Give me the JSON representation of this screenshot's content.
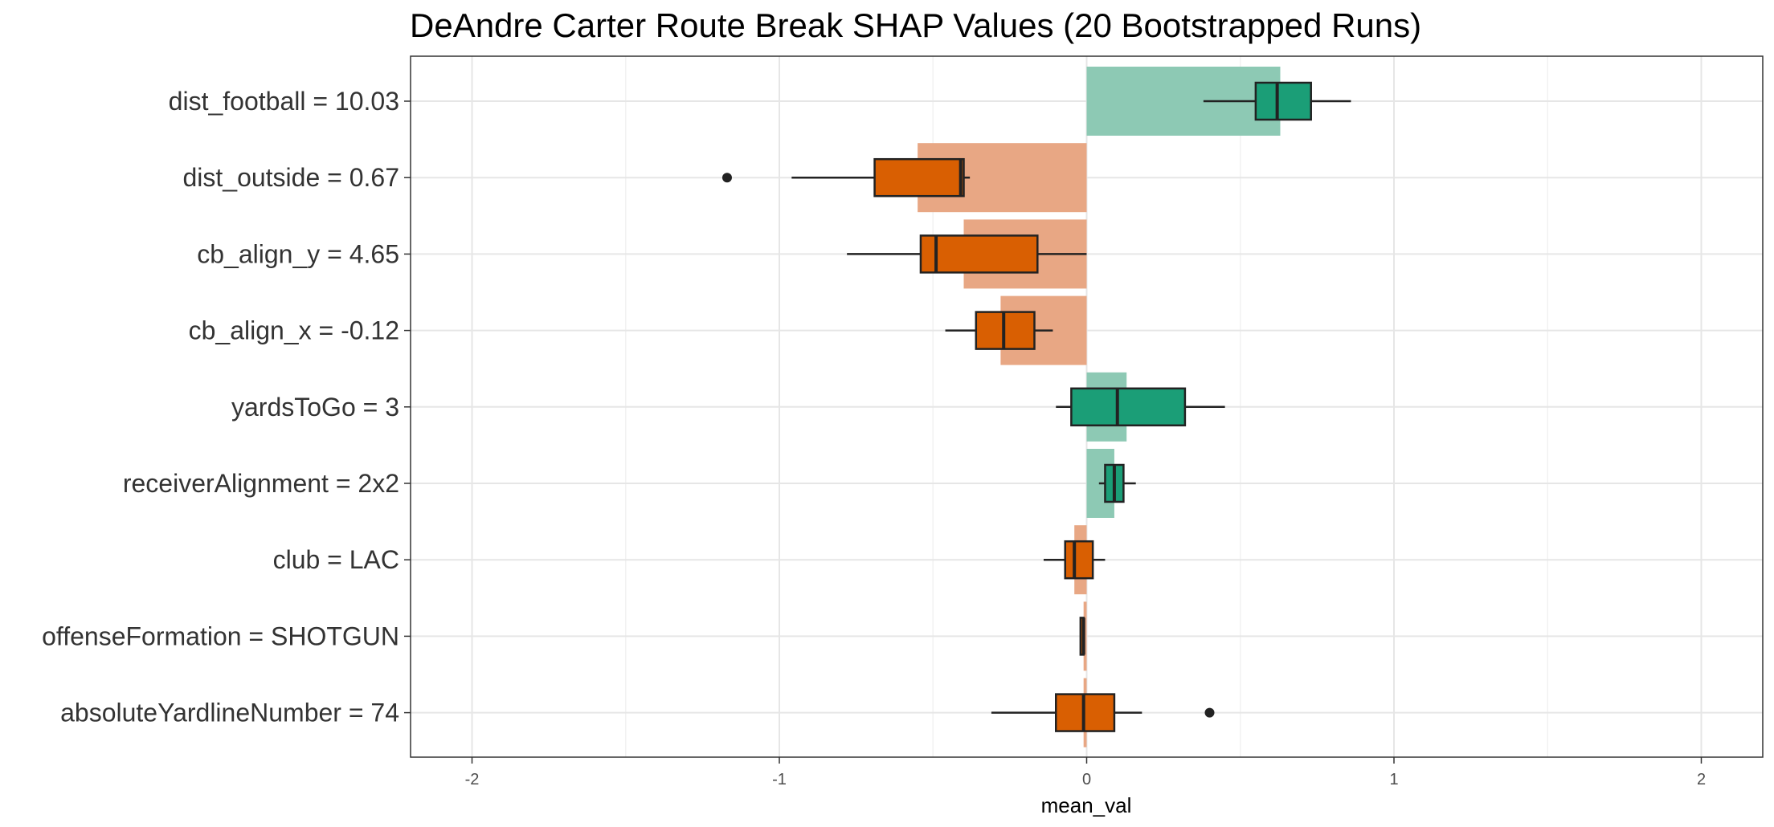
{
  "chart_data": {
    "type": "bar",
    "title": "DeAndre Carter Route Break SHAP Values (20 Bootstrapped Runs)",
    "xlabel": "mean_val",
    "ylabel": "",
    "xlim": [
      -2.2,
      2.2
    ],
    "x_ticks": [
      -2,
      -1,
      0,
      1,
      2
    ],
    "x_tick_labels": [
      "-2",
      "-1",
      "0",
      "1",
      "2"
    ],
    "grid": true,
    "colors": {
      "positive": "#1b9e77",
      "negative": "#d95f02",
      "positive_bar": "#8dc9b4",
      "negative_bar": "#e8a784",
      "box_outline": "#222222"
    },
    "categories": [
      "dist_football = 10.03",
      "dist_outside = 0.67",
      "cb_align_y = 4.65",
      "cb_align_x = -0.12",
      "yardsToGo = 3",
      "receiverAlignment = 2x2",
      "club = LAC",
      "offenseFormation = SHOTGUN",
      "absoluteYardlineNumber = 74"
    ],
    "mean_values": [
      0.63,
      -0.55,
      -0.4,
      -0.28,
      0.13,
      0.09,
      -0.04,
      -0.01,
      -0.01
    ],
    "boxplots": [
      {
        "whisker_low": 0.38,
        "q1": 0.55,
        "median": 0.62,
        "q3": 0.73,
        "whisker_high": 0.86,
        "outliers": []
      },
      {
        "whisker_low": -0.96,
        "q1": -0.69,
        "median": -0.41,
        "q3": -0.4,
        "whisker_high": -0.38,
        "outliers": [
          -1.17
        ]
      },
      {
        "whisker_low": -0.78,
        "q1": -0.54,
        "median": -0.49,
        "q3": -0.16,
        "whisker_high": 0.0,
        "outliers": []
      },
      {
        "whisker_low": -0.46,
        "q1": -0.36,
        "median": -0.27,
        "q3": -0.17,
        "whisker_high": -0.11,
        "outliers": []
      },
      {
        "whisker_low": -0.1,
        "q1": -0.05,
        "median": 0.1,
        "q3": 0.32,
        "whisker_high": 0.45,
        "outliers": []
      },
      {
        "whisker_low": 0.04,
        "q1": 0.06,
        "median": 0.09,
        "q3": 0.12,
        "whisker_high": 0.16,
        "outliers": []
      },
      {
        "whisker_low": -0.14,
        "q1": -0.07,
        "median": -0.04,
        "q3": 0.02,
        "whisker_high": 0.06,
        "outliers": []
      },
      {
        "whisker_low": -0.02,
        "q1": -0.02,
        "median": -0.01,
        "q3": -0.01,
        "whisker_high": -0.01,
        "outliers": []
      },
      {
        "whisker_low": -0.31,
        "q1": -0.1,
        "median": -0.01,
        "q3": 0.09,
        "whisker_high": 0.18,
        "outliers": [
          0.4
        ]
      }
    ]
  }
}
